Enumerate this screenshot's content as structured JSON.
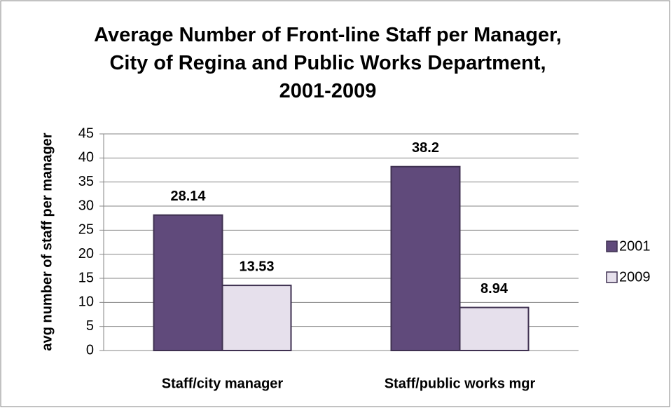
{
  "chart_data": {
    "type": "bar",
    "title": "Average Number of Front-line Staff per Manager, City of Regina and Public Works Department, 2001-2009",
    "y_label": "avg number of staff per manager",
    "categories": [
      "Staff/city manager",
      "Staff/public works mgr"
    ],
    "series": [
      {
        "name": "2001",
        "color": "#604a7b",
        "values": [
          28.14,
          38.2
        ]
      },
      {
        "name": "2009",
        "color": "#e6e0ec",
        "values": [
          13.53,
          8.94
        ]
      }
    ],
    "ylim": [
      0,
      45
    ],
    "yticks": [
      0,
      5,
      10,
      15,
      20,
      25,
      30,
      35,
      40,
      45
    ],
    "grid": true,
    "legend": "right"
  }
}
